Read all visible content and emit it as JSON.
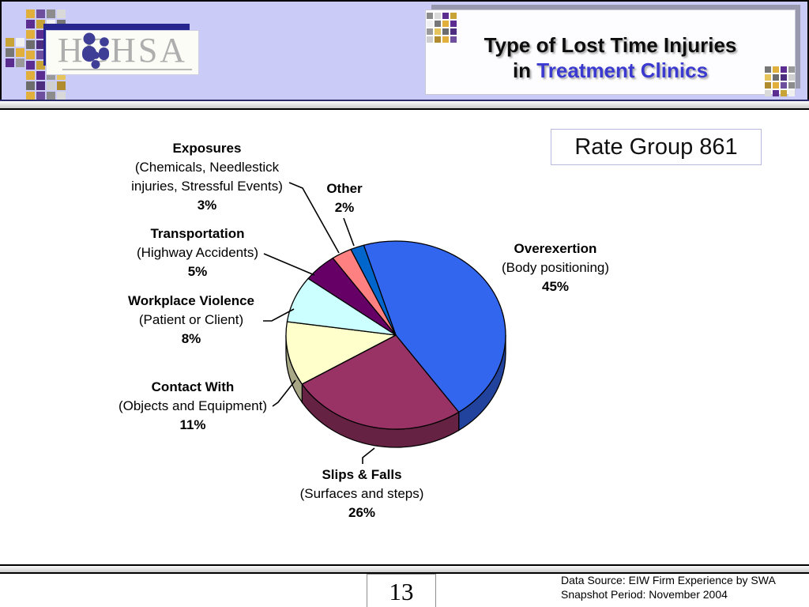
{
  "header": {
    "logo_text": "HCHSA",
    "title_line1": "Type of Lost Time Injuries",
    "title_line2_prefix": "in ",
    "title_line2_highlight": "Treatment Clinics",
    "title_highlight_color": "#3a3ad0"
  },
  "rate_group_label": "Rate Group 861",
  "chart_data": {
    "type": "pie",
    "title": "Type of Lost Time Injuries in Treatment Clinics",
    "subtitle": "Rate Group 861",
    "unit": "%",
    "style": "3d",
    "start_angle_deg": -17,
    "direction": "clockwise",
    "legend": "none",
    "slices": [
      {
        "label": "Overexertion",
        "sublabel": "(Body positioning)",
        "value": 45,
        "pct_label": "45%",
        "color": "#3366ee"
      },
      {
        "label": "Slips & Falls",
        "sublabel": "(Surfaces and steps)",
        "value": 26,
        "pct_label": "26%",
        "color": "#993366"
      },
      {
        "label": "Contact With",
        "sublabel": "(Objects and Equipment)",
        "value": 11,
        "pct_label": "11%",
        "color": "#ffffcc"
      },
      {
        "label": "Workplace Violence",
        "sublabel": "(Patient or Client)",
        "value": 8,
        "pct_label": "8%",
        "color": "#ccffff"
      },
      {
        "label": "Transportation",
        "sublabel": "(Highway Accidents)",
        "value": 5,
        "pct_label": "5%",
        "color": "#660066"
      },
      {
        "label": "Exposures",
        "sublabel": "(Chemicals, Needlestick injuries, Stressful Events)",
        "sublabel_line1": "(Chemicals, Needlestick",
        "sublabel_line2": "injuries, Stressful Events)",
        "value": 3,
        "pct_label": "3%",
        "color": "#ff8080"
      },
      {
        "label": "Other",
        "sublabel": "",
        "value": 2,
        "pct_label": "2%",
        "color": "#0066cc"
      }
    ]
  },
  "footer": {
    "page_number": "13",
    "source_line1": "Data Source: EIW Firm Experience by SWA",
    "source_line2": "Snapshot Period: November 2004"
  }
}
